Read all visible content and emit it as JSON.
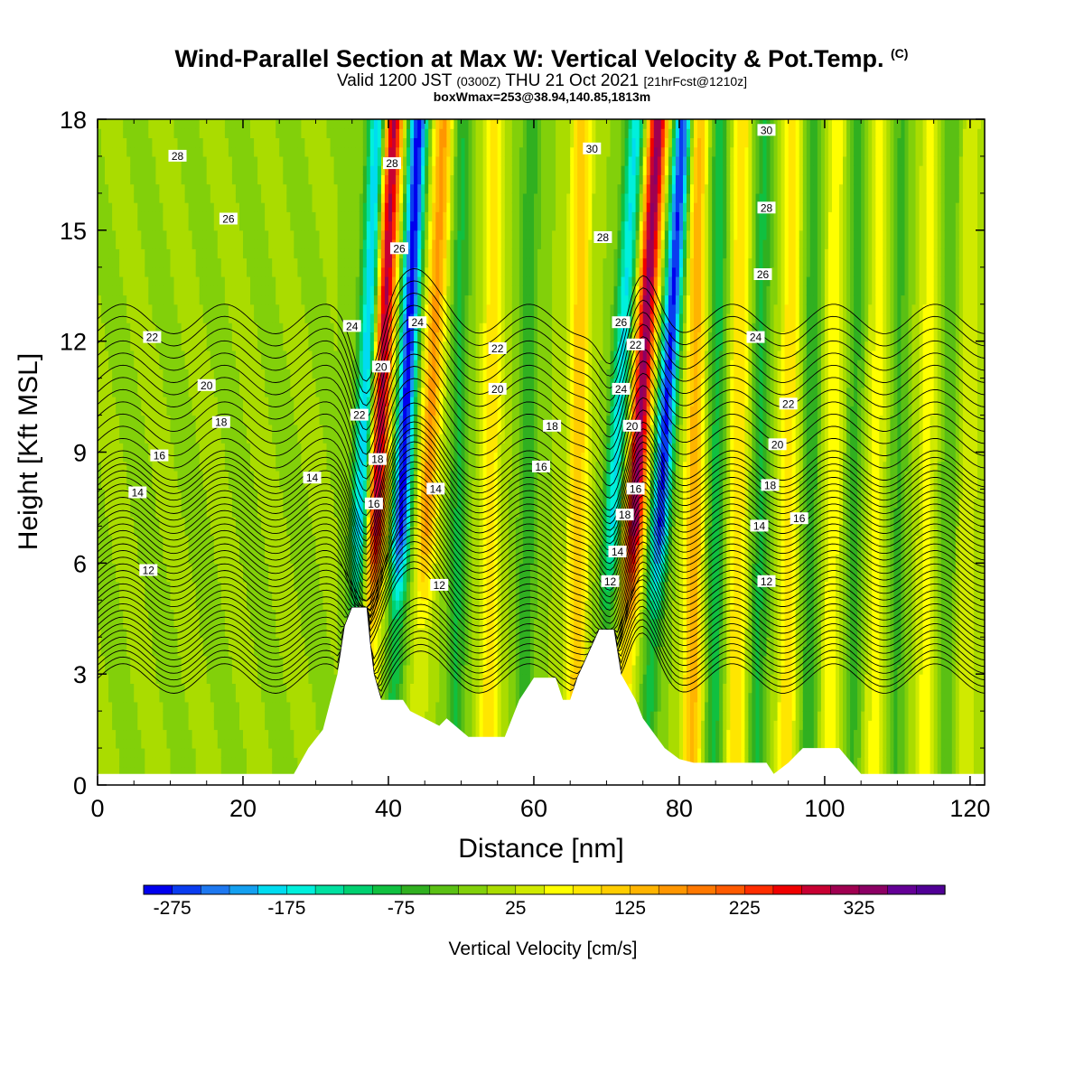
{
  "title": {
    "main": "Wind-Parallel Section at Max W: Vertical Velocity & Pot.Temp.",
    "copyright": "(C)",
    "valid_prefix": "Valid 1200 JST",
    "valid_utc": "(0300Z)",
    "valid_date": "THU 21 Oct 2021",
    "forecast": "[21hrFcst@1210z]",
    "boxwmax": "boxWmax=253@38.94,140.85,1813m"
  },
  "chart_data": {
    "type": "heatmap",
    "xlabel": "Distance [nm]",
    "ylabel": "Height [Kft MSL]",
    "xlim": [
      0,
      122
    ],
    "ylim": [
      0,
      18
    ],
    "x_ticks": [
      0,
      20,
      40,
      60,
      80,
      100,
      120
    ],
    "y_ticks": [
      0,
      3,
      6,
      9,
      12,
      15,
      18
    ],
    "colorbar": {
      "label": "Vertical Velocity [cm/s]",
      "tick_labels": [
        "-275",
        "-175",
        "-75",
        "25",
        "125",
        "225",
        "325"
      ],
      "range": [
        -300,
        400
      ],
      "step": 25,
      "colors": [
        "#0000ee",
        "#0a3cf0",
        "#1e78f0",
        "#14a0f0",
        "#00dcf0",
        "#00f0dc",
        "#00e0a0",
        "#00d070",
        "#10c040",
        "#30b020",
        "#5ac014",
        "#82d00a",
        "#aadc00",
        "#d0ea00",
        "#ffff00",
        "#ffe600",
        "#ffcd00",
        "#ffb400",
        "#ff9600",
        "#ff7800",
        "#ff5a00",
        "#ff2d00",
        "#f00000",
        "#c80032",
        "#a00050",
        "#8c0064",
        "#640096",
        "#500096"
      ]
    },
    "theta_contours": {
      "label_values": [
        12,
        14,
        16,
        18,
        20,
        22,
        24,
        26,
        28,
        30
      ]
    },
    "updraft_bands_nm": [
      38,
      45,
      54,
      66,
      73.5,
      82,
      88,
      95,
      101,
      107,
      114,
      119.5
    ],
    "downdraft_bands_nm": [
      36,
      41.5,
      49.5,
      59,
      70.5,
      77,
      85,
      91,
      98,
      104,
      110,
      117
    ],
    "terrain_kft": [
      [
        0,
        0.3
      ],
      [
        27,
        0.3
      ],
      [
        29,
        1.0
      ],
      [
        31,
        1.5
      ],
      [
        33,
        3.0
      ],
      [
        34,
        4.3
      ],
      [
        35,
        4.8
      ],
      [
        37,
        4.8
      ],
      [
        37.5,
        3.8
      ],
      [
        38,
        3.0
      ],
      [
        39,
        2.3
      ],
      [
        40,
        2.3
      ],
      [
        42,
        2.3
      ],
      [
        43,
        2.0
      ],
      [
        45,
        1.8
      ],
      [
        47,
        1.6
      ],
      [
        48,
        1.8
      ],
      [
        51,
        1.3
      ],
      [
        56,
        1.3
      ],
      [
        58,
        2.3
      ],
      [
        60,
        2.9
      ],
      [
        63,
        2.9
      ],
      [
        64,
        2.3
      ],
      [
        65,
        2.3
      ],
      [
        66,
        2.9
      ],
      [
        69,
        4.2
      ],
      [
        71,
        4.2
      ],
      [
        72,
        3.0
      ],
      [
        74,
        2.3
      ],
      [
        75,
        1.8
      ],
      [
        78,
        1.0
      ],
      [
        80,
        0.7
      ],
      [
        82,
        0.6
      ],
      [
        92,
        0.6
      ],
      [
        93,
        0.3
      ],
      [
        95,
        0.6
      ],
      [
        97,
        1.0
      ],
      [
        102,
        1.0
      ],
      [
        105,
        0.3
      ],
      [
        122,
        0.3
      ]
    ]
  }
}
